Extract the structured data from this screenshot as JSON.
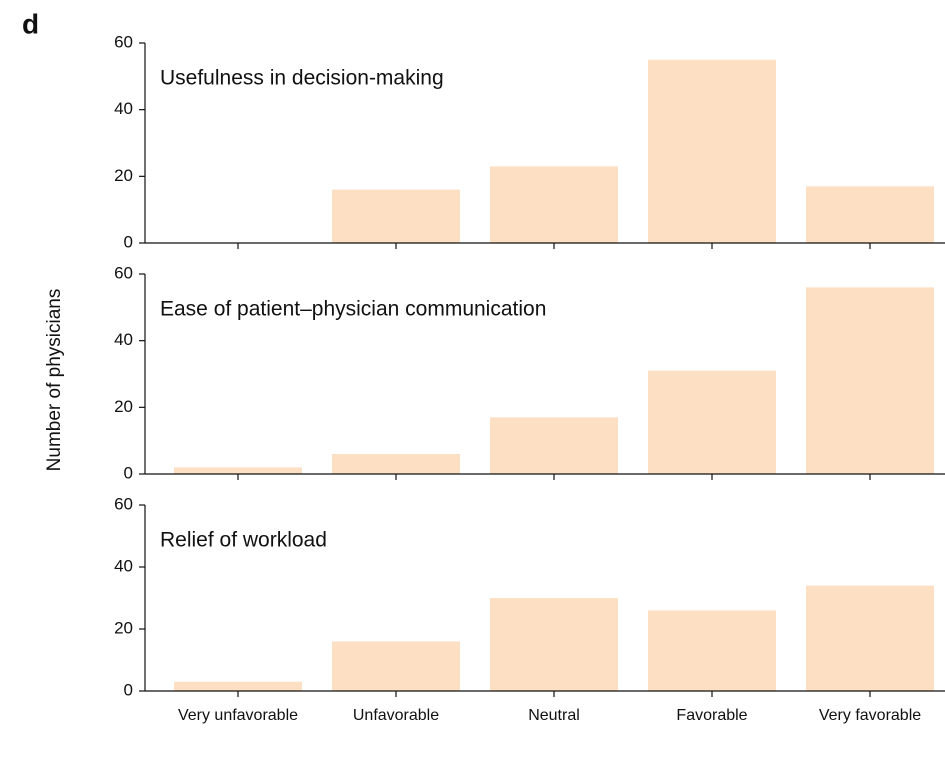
{
  "panel_label": "d",
  "ylabel": "Number of physicians",
  "chart_data": [
    {
      "type": "bar",
      "title": "Usefulness in decision-making",
      "values": [
        0,
        16,
        23,
        55,
        17
      ],
      "color": "#fddfc4",
      "ylim": [
        0,
        60
      ],
      "yticks": [
        0,
        20,
        40,
        60
      ]
    },
    {
      "type": "bar",
      "title": "Ease of patient–physician communication",
      "values": [
        2,
        6,
        17,
        31,
        56
      ],
      "color": "#fddfc4",
      "ylim": [
        0,
        60
      ],
      "yticks": [
        0,
        20,
        40,
        60
      ]
    },
    {
      "type": "bar",
      "title": "Relief of workload",
      "categories": [
        "Very unfavorable",
        "Unfavorable",
        "Neutral",
        "Favorable",
        "Very favorable"
      ],
      "values": [
        3,
        16,
        30,
        26,
        34
      ],
      "color": "#fddfc4",
      "ylim": [
        0,
        60
      ],
      "yticks": [
        0,
        20,
        40,
        60
      ]
    }
  ]
}
